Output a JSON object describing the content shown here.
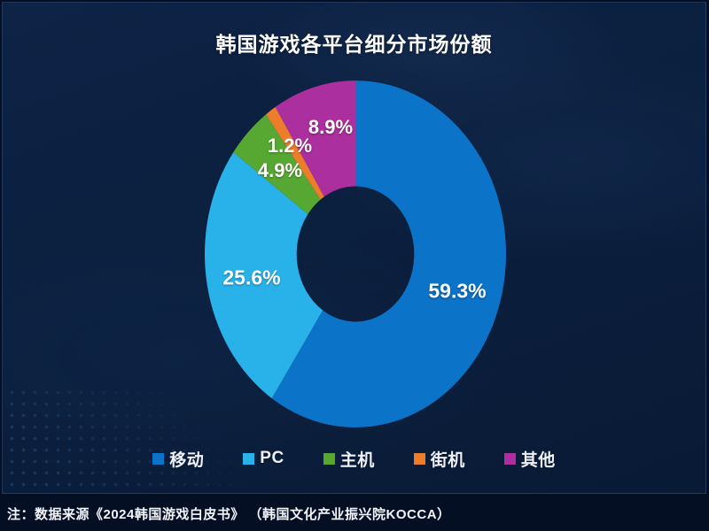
{
  "page": {
    "footnote": "注：数据来源《2024韩国游戏白皮书》 （韩国文化产业振兴院KOCCA）"
  },
  "colors": {
    "background": "#050f24",
    "panel": "#0b1f3e",
    "title_text": "#ffffff",
    "value_label_text": "#ffffff"
  },
  "chart_data": {
    "type": "pie",
    "subtype": "donut",
    "title": "韩国游戏各平台细分市场份额",
    "start_angle_deg": 0,
    "direction": "clockwise",
    "legend_position": "bottom",
    "grid": false,
    "inner_radius_ratio": 0.39,
    "categories": [
      "移动",
      "PC",
      "主机",
      "街机",
      "其他"
    ],
    "series": [
      {
        "name": "移动",
        "value": 59.3,
        "label": "59.3%",
        "color": "#0b73c8"
      },
      {
        "name": "PC",
        "value": 25.6,
        "label": "25.6%",
        "color": "#29b2ea"
      },
      {
        "name": "主机",
        "value": 4.9,
        "label": "4.9%",
        "color": "#57a733"
      },
      {
        "name": "街机",
        "value": 1.2,
        "label": "1.2%",
        "color": "#ec7d2a"
      },
      {
        "name": "其他",
        "value": 8.9,
        "label": "8.9%",
        "color": "#ab2f9e"
      }
    ]
  }
}
